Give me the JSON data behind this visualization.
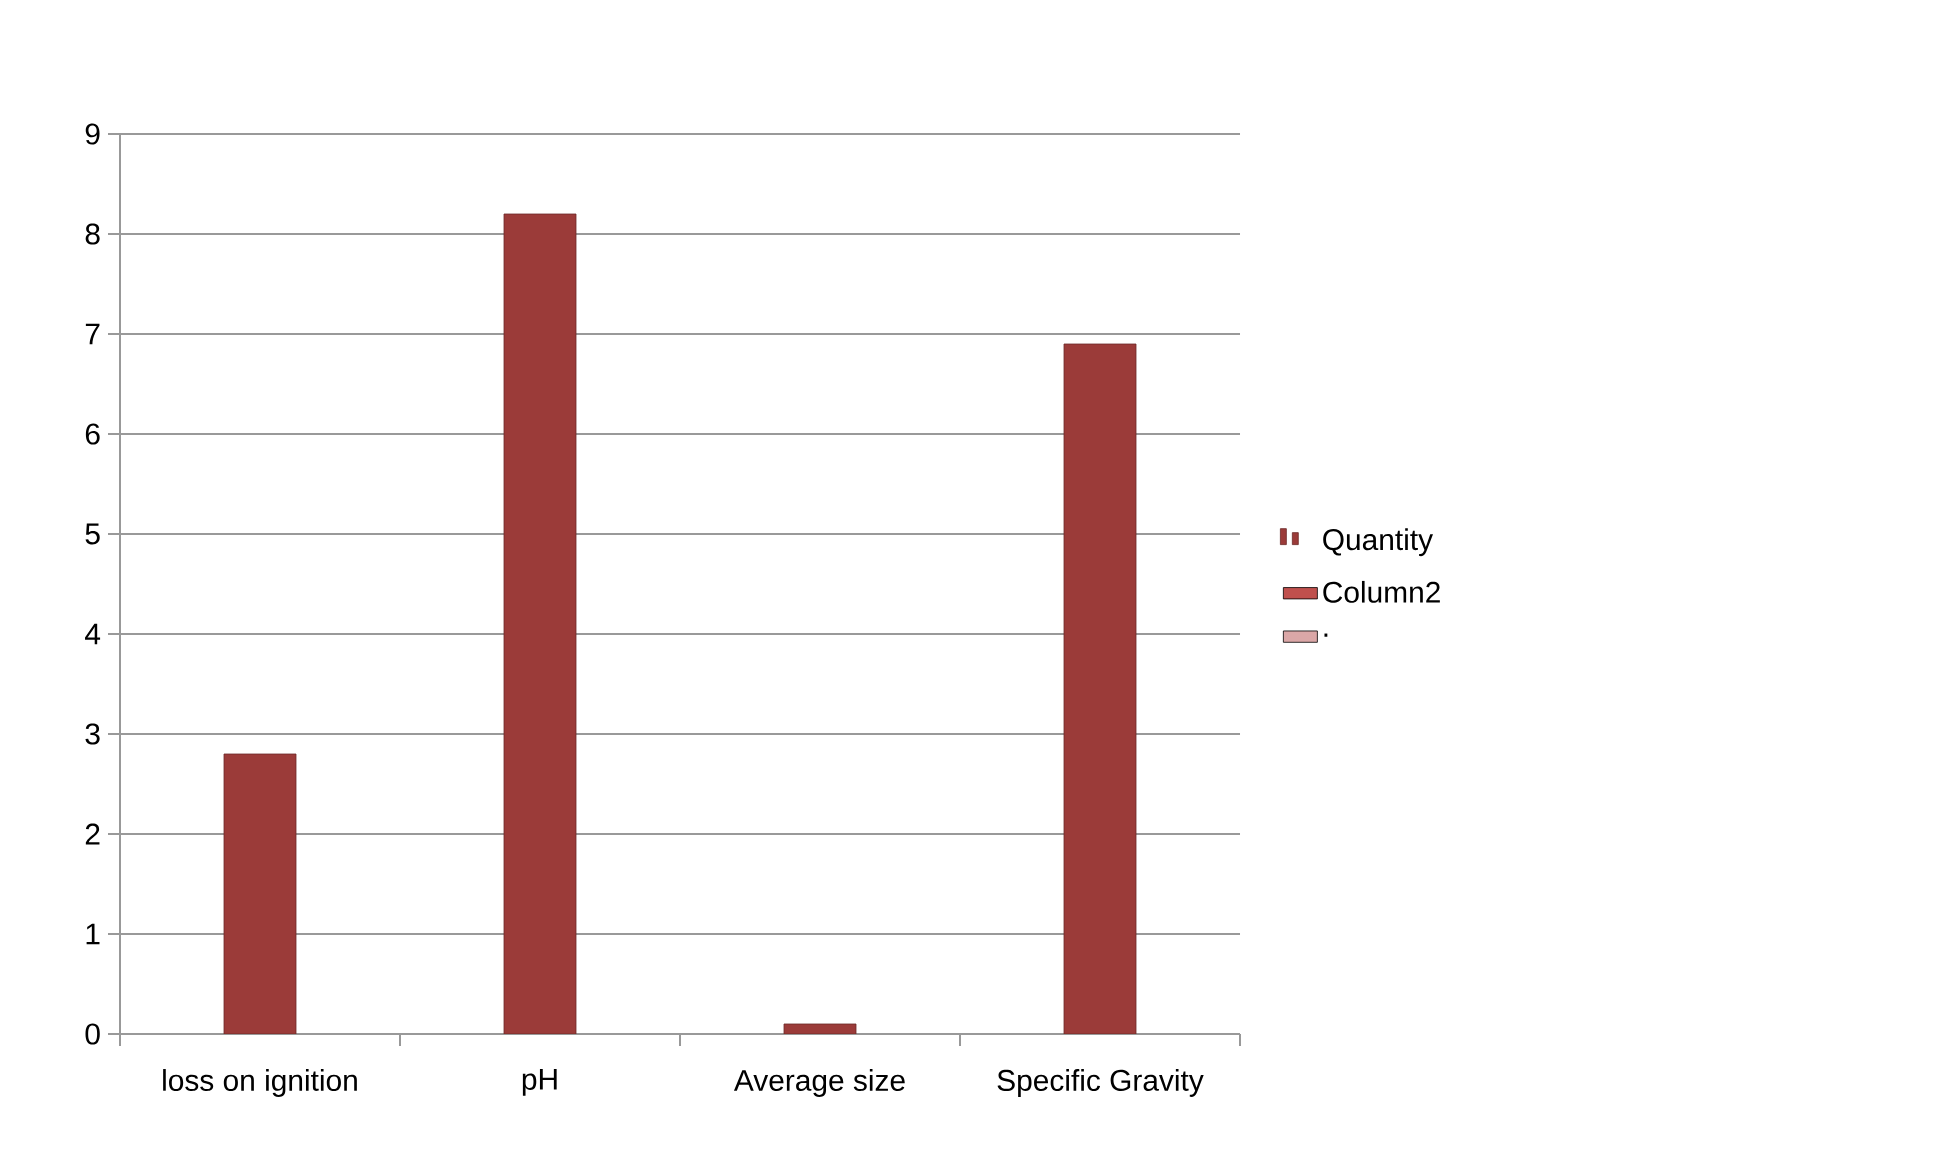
{
  "chart_data": {
    "type": "bar",
    "categories": [
      "loss on ignition",
      "pH",
      "Average size",
      "Specific Gravity"
    ],
    "series": [
      {
        "name": "Quantity",
        "color": "#9b3b39",
        "values": [
          2.8,
          8.2,
          0.1,
          6.9
        ]
      },
      {
        "name": "Column2",
        "color": "#c0504d",
        "values": [
          null,
          null,
          null,
          null
        ]
      },
      {
        "name": ".",
        "color": "#dba7a7",
        "values": [
          null,
          null,
          null,
          null
        ]
      }
    ],
    "ylim": [
      0,
      9
    ],
    "yticks": [
      0,
      1,
      2,
      3,
      4,
      5,
      6,
      7,
      8,
      9
    ],
    "grid": "y",
    "legend": "right"
  }
}
